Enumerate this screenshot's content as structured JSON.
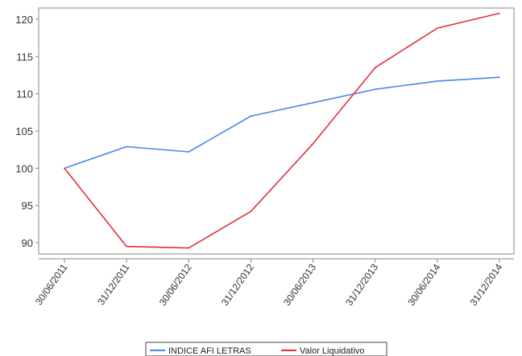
{
  "chart_data": {
    "type": "line",
    "title": "",
    "xlabel": "",
    "ylabel": "",
    "categories": [
      "30/06/2011",
      "31/12/2011",
      "30/06/2012",
      "31/12/2012",
      "30/06/2013",
      "31/12/2013",
      "30/06/2014",
      "31/12/2014"
    ],
    "series": [
      {
        "name": "INDICE AFI LETRAS",
        "color": "#4a86e8",
        "values": [
          100.0,
          102.9,
          102.2,
          107.0,
          108.8,
          110.6,
          111.7,
          112.2
        ]
      },
      {
        "name": "Valor Liquidativo",
        "color": "#e0303a",
        "values": [
          100.0,
          89.5,
          89.3,
          94.2,
          103.3,
          113.5,
          118.8,
          120.8
        ]
      }
    ],
    "ylim": [
      88.5,
      121.5
    ],
    "yticks": [
      90,
      95,
      100,
      105,
      110,
      115,
      120
    ],
    "grid": false,
    "legend_position": "bottom"
  }
}
